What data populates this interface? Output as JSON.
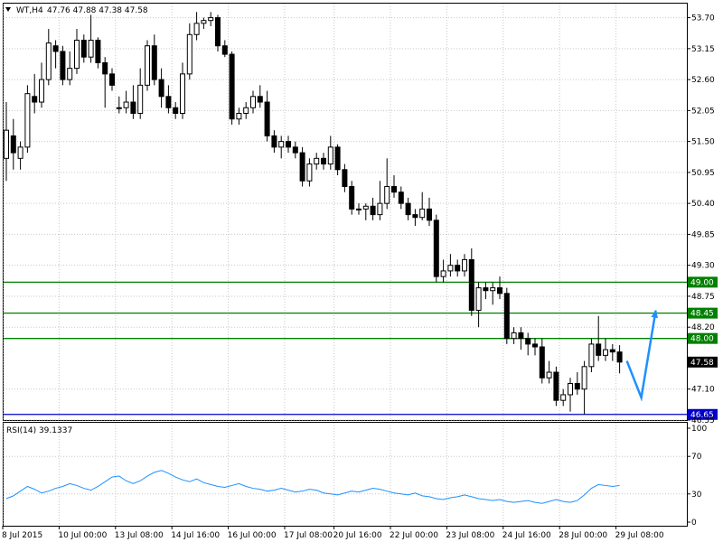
{
  "header": {
    "symbol_label": "WT,H4",
    "ohlc_label": "47.76 47.88 47.38 47.58"
  },
  "indicator": {
    "label": "RSI(14) 39.1337"
  },
  "colors": {
    "background": "#ffffff",
    "candle": "#000000",
    "grid": "#c8c8c8",
    "level_line": "#008000",
    "support_line": "#0000c8",
    "rsi_line": "#1e90ff",
    "arrow": "#1e90ff"
  },
  "chart_data": [
    {
      "type": "candlestick",
      "title": "",
      "ylim": [
        46.55,
        53.95
      ],
      "y_ticks": [
        "53.70",
        "53.15",
        "52.60",
        "52.05",
        "51.50",
        "50.95",
        "50.40",
        "49.85",
        "49.30",
        "48.75",
        "48.20",
        "47.10",
        "46.55"
      ],
      "x_tick_labels": [
        "8 Jul 2015",
        "10 Jul 00:00",
        "13 Jul 08:00",
        "14 Jul 16:00",
        "16 Jul 00:00",
        "17 Jul 08:00",
        "20 Jul 16:00",
        "22 Jul 00:00",
        "23 Jul 08:00",
        "24 Jul 16:00",
        "28 Jul 00:00",
        "29 Jul 08:00"
      ],
      "last_price_label": "47.58",
      "horizontal_levels": [
        {
          "value": 49.0,
          "label": "49.00",
          "color": "#008000"
        },
        {
          "value": 48.45,
          "label": "48.45",
          "color": "#008000"
        },
        {
          "value": 48.0,
          "label": "48.00",
          "color": "#008000"
        },
        {
          "value": 46.65,
          "label": "46.65",
          "color": "#0000c8"
        }
      ],
      "candles": [
        [
          51.2,
          52.2,
          50.8,
          51.7
        ],
        [
          51.6,
          51.9,
          51.0,
          51.3
        ],
        [
          51.2,
          51.5,
          51.0,
          51.4
        ],
        [
          51.4,
          52.5,
          51.3,
          52.35
        ],
        [
          52.3,
          52.7,
          52.0,
          52.2
        ],
        [
          52.2,
          52.9,
          52.1,
          52.6
        ],
        [
          52.6,
          53.5,
          52.5,
          53.25
        ],
        [
          53.2,
          53.3,
          52.8,
          53.1
        ],
        [
          53.1,
          53.2,
          52.5,
          52.6
        ],
        [
          52.6,
          53.1,
          52.5,
          52.8
        ],
        [
          52.8,
          53.5,
          52.7,
          53.3
        ],
        [
          53.3,
          53.4,
          52.9,
          53.0
        ],
        [
          53.0,
          53.75,
          52.9,
          53.3
        ],
        [
          53.3,
          53.35,
          52.8,
          52.9
        ],
        [
          52.9,
          53.0,
          52.1,
          52.7
        ],
        [
          52.7,
          52.8,
          52.4,
          52.5
        ],
        [
          52.1,
          52.3,
          52.0,
          52.1
        ],
        [
          52.1,
          52.4,
          52.0,
          52.2
        ],
        [
          52.2,
          52.5,
          51.9,
          52.0
        ],
        [
          52.0,
          52.8,
          51.9,
          52.5
        ],
        [
          52.5,
          53.3,
          52.4,
          53.2
        ],
        [
          53.2,
          53.4,
          52.5,
          52.6
        ],
        [
          52.6,
          52.8,
          52.1,
          52.3
        ],
        [
          52.3,
          52.5,
          52.0,
          52.1
        ],
        [
          52.1,
          52.2,
          51.9,
          52.0
        ],
        [
          52.0,
          52.9,
          51.9,
          52.7
        ],
        [
          52.7,
          53.6,
          52.6,
          53.4
        ],
        [
          53.4,
          53.8,
          53.3,
          53.6
        ],
        [
          53.6,
          53.7,
          53.5,
          53.65
        ],
        [
          53.65,
          53.8,
          53.55,
          53.7
        ],
        [
          53.7,
          53.75,
          53.1,
          53.2
        ],
        [
          53.2,
          53.3,
          53.0,
          53.05
        ],
        [
          53.05,
          53.1,
          51.8,
          51.9
        ],
        [
          51.9,
          52.1,
          51.8,
          52.0
        ],
        [
          52.0,
          52.2,
          51.9,
          52.1
        ],
        [
          52.1,
          52.4,
          52.0,
          52.3
        ],
        [
          52.3,
          52.5,
          52.1,
          52.2
        ],
        [
          52.2,
          52.4,
          51.5,
          51.6
        ],
        [
          51.6,
          51.7,
          51.3,
          51.4
        ],
        [
          51.4,
          51.6,
          51.2,
          51.5
        ],
        [
          51.5,
          51.6,
          51.3,
          51.4
        ],
        [
          51.4,
          51.5,
          51.2,
          51.3
        ],
        [
          51.3,
          51.4,
          50.7,
          50.8
        ],
        [
          50.8,
          51.2,
          50.7,
          51.1
        ],
        [
          51.1,
          51.3,
          51.0,
          51.2
        ],
        [
          51.2,
          51.3,
          51.0,
          51.1
        ],
        [
          51.1,
          51.6,
          51.0,
          51.4
        ],
        [
          51.4,
          51.45,
          50.9,
          51.0
        ],
        [
          51.0,
          51.1,
          50.6,
          50.7
        ],
        [
          50.7,
          50.8,
          50.2,
          50.3
        ],
        [
          50.3,
          50.4,
          50.2,
          50.3
        ],
        [
          50.3,
          50.4,
          50.1,
          50.35
        ],
        [
          50.35,
          50.5,
          50.1,
          50.2
        ],
        [
          50.2,
          50.8,
          50.1,
          50.4
        ],
        [
          50.4,
          51.2,
          50.3,
          50.7
        ],
        [
          50.7,
          50.9,
          50.5,
          50.6
        ],
        [
          50.6,
          50.7,
          50.3,
          50.4
        ],
        [
          50.4,
          50.5,
          50.1,
          50.2
        ],
        [
          50.2,
          50.3,
          50.0,
          50.15
        ],
        [
          50.15,
          50.6,
          50.1,
          50.3
        ],
        [
          50.3,
          50.5,
          50.0,
          50.1
        ],
        [
          50.1,
          50.2,
          49.0,
          49.1
        ],
        [
          49.1,
          49.4,
          49.0,
          49.2
        ],
        [
          49.2,
          49.5,
          49.1,
          49.3
        ],
        [
          49.3,
          49.4,
          49.1,
          49.2
        ],
        [
          49.2,
          49.5,
          49.1,
          49.4
        ],
        [
          49.4,
          49.6,
          48.4,
          48.5
        ],
        [
          48.5,
          49.0,
          48.2,
          48.9
        ],
        [
          48.9,
          49.0,
          48.7,
          48.85
        ],
        [
          48.85,
          49.0,
          48.6,
          48.9
        ],
        [
          48.9,
          49.1,
          48.7,
          48.8
        ],
        [
          48.8,
          48.9,
          47.9,
          48.0
        ],
        [
          48.0,
          48.2,
          47.9,
          48.1
        ],
        [
          48.1,
          48.2,
          47.8,
          48.0
        ],
        [
          48.0,
          48.1,
          47.7,
          47.9
        ],
        [
          47.9,
          48.0,
          47.7,
          47.85
        ],
        [
          47.85,
          48.0,
          47.2,
          47.3
        ],
        [
          47.3,
          47.6,
          47.2,
          47.4
        ],
        [
          47.4,
          47.5,
          46.8,
          46.9
        ],
        [
          46.9,
          47.1,
          46.8,
          47.0
        ],
        [
          47.0,
          47.3,
          46.7,
          47.2
        ],
        [
          47.2,
          47.4,
          47.0,
          47.1
        ],
        [
          47.1,
          47.6,
          46.65,
          47.5
        ],
        [
          47.5,
          48.0,
          47.4,
          47.9
        ],
        [
          47.9,
          48.4,
          47.6,
          47.7
        ],
        [
          47.7,
          48.0,
          47.6,
          47.8
        ],
        [
          47.8,
          47.9,
          47.6,
          47.76
        ],
        [
          47.76,
          47.88,
          47.38,
          47.58
        ]
      ],
      "projection_path": [
        [
          47.6,
          47.55
        ],
        [
          46.95,
          47.0
        ],
        [
          48.5,
          48.45
        ]
      ]
    },
    {
      "type": "line",
      "title": "",
      "ylim": [
        0,
        100
      ],
      "y_ticks": [
        "100",
        "70",
        "30",
        "0"
      ],
      "series": [
        {
          "name": "",
          "values": [
            25,
            28,
            33,
            38,
            35,
            31,
            33,
            36,
            38,
            41,
            39,
            36,
            34,
            38,
            43,
            48,
            49,
            44,
            41,
            44,
            49,
            53,
            55,
            52,
            48,
            45,
            43,
            46,
            42,
            40,
            38,
            37,
            39,
            41,
            38,
            36,
            35,
            33,
            34,
            36,
            34,
            32,
            33,
            35,
            34,
            31,
            30,
            29,
            31,
            33,
            32,
            34,
            36,
            35,
            33,
            31,
            30,
            29,
            31,
            28,
            27,
            25,
            24,
            26,
            27,
            29,
            27,
            25,
            24,
            23,
            24,
            22,
            21,
            22,
            23,
            21,
            20,
            22,
            24,
            22,
            21,
            23,
            29,
            36,
            40,
            39,
            38,
            39
          ]
        }
      ]
    }
  ]
}
